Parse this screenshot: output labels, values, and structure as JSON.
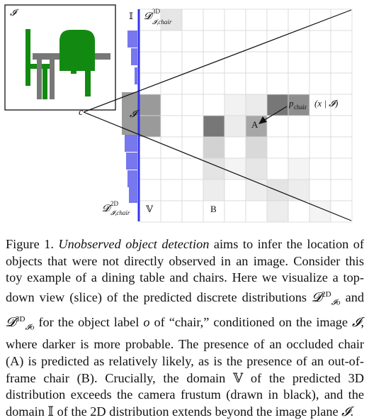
{
  "figure": {
    "inset_label": "𝓘",
    "label_II": "𝕀",
    "label_D3": "𝓓",
    "label_D3_sup": "3D",
    "label_D3_sub": "𝓘,chair",
    "label_c": "c",
    "label_image_plane": "𝓘",
    "label_p": "p",
    "label_p_sub": "chair",
    "label_p_args": "(x | 𝓘)",
    "label_A": "A",
    "label_B": "B",
    "label_D2": "𝓓",
    "label_D2_sup": "2D",
    "label_D2_sub": "𝓘,chair",
    "label_V": "𝕍",
    "colors": {
      "image_plane": "#3333ee",
      "inset_green": "#128a12",
      "inset_gray": "#777777",
      "bars": "#7777ee"
    }
  },
  "caption": {
    "fig": "Figure 1.",
    "title": "Unobserved object detection",
    "s1": "aims to infer the location of objects that were not directly observed in an image. Consider this toy example of a dining table and chairs. Here we visualize a top-down view (slice) of the predicted discrete distributions",
    "D": "𝓓",
    "sup2": "2D",
    "sup3": "3D",
    "sub": "𝓘o",
    "and": "and",
    "s2": "for the object label",
    "o": "o",
    "s3": "of “chair,” conditioned on the image",
    "I": "𝓘",
    "s4": ", where darker is more probable. The presence of an occluded chair (A) is predicted as relatively likely, as is the presence of an out-of-frame chair (B). Crucially, the domain",
    "V": "𝕍",
    "s5": "of the predicted 3D distribution exceeds the camera frustum (drawn in black), and the domain",
    "II": "𝕀",
    "s6": "of the 2D distribution extends beyond the image plane",
    "end": "."
  }
}
